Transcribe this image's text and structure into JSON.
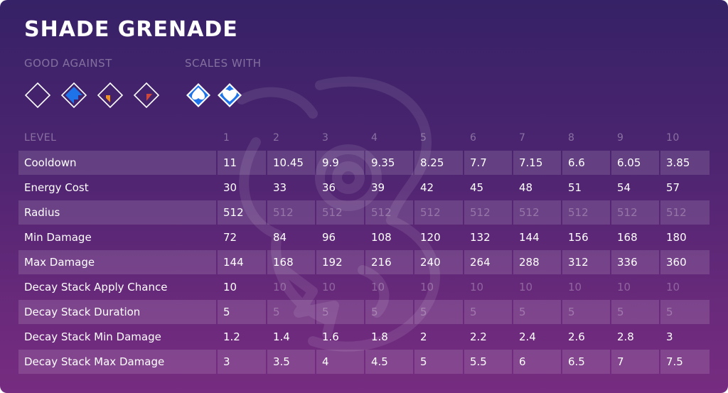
{
  "title": "SHADE GRENADE",
  "good_against": {
    "label": "GOOD AGAINST",
    "icons": [
      "diamond-outline-icon",
      "diamond-blue-corner-icon",
      "diamond-orange-corner-icon",
      "diamond-red-corner-icon"
    ]
  },
  "scales_with": {
    "label": "SCALES WITH",
    "icons": [
      "diamond-blue-spade-icon",
      "diamond-blue-heart-icon"
    ]
  },
  "colors": {
    "bg_top": "#362266",
    "bg_bottom": "#762c80",
    "accent_blue": "#1e73e8",
    "accent_orange": "#f0921e",
    "accent_red": "#d0483a"
  },
  "table": {
    "header": [
      "LEVEL",
      "1",
      "2",
      "3",
      "4",
      "5",
      "6",
      "7",
      "8",
      "9",
      "10"
    ],
    "rows": [
      {
        "label": "Cooldown",
        "values": [
          "11",
          "10.45",
          "9.9",
          "9.35",
          "8.25",
          "7.7",
          "7.15",
          "6.6",
          "6.05",
          "3.85"
        ],
        "dim": [
          false,
          false,
          false,
          false,
          false,
          false,
          false,
          false,
          false,
          false
        ]
      },
      {
        "label": "Energy Cost",
        "values": [
          "30",
          "33",
          "36",
          "39",
          "42",
          "45",
          "48",
          "51",
          "54",
          "57"
        ],
        "dim": [
          false,
          false,
          false,
          false,
          false,
          false,
          false,
          false,
          false,
          false
        ]
      },
      {
        "label": "Radius",
        "values": [
          "512",
          "512",
          "512",
          "512",
          "512",
          "512",
          "512",
          "512",
          "512",
          "512"
        ],
        "dim": [
          false,
          true,
          true,
          true,
          true,
          true,
          true,
          true,
          true,
          true
        ]
      },
      {
        "label": "Min Damage",
        "values": [
          "72",
          "84",
          "96",
          "108",
          "120",
          "132",
          "144",
          "156",
          "168",
          "180"
        ],
        "dim": [
          false,
          false,
          false,
          false,
          false,
          false,
          false,
          false,
          false,
          false
        ]
      },
      {
        "label": "Max Damage",
        "values": [
          "144",
          "168",
          "192",
          "216",
          "240",
          "264",
          "288",
          "312",
          "336",
          "360"
        ],
        "dim": [
          false,
          false,
          false,
          false,
          false,
          false,
          false,
          false,
          false,
          false
        ]
      },
      {
        "label": "Decay Stack Apply Chance",
        "values": [
          "10",
          "10",
          "10",
          "10",
          "10",
          "10",
          "10",
          "10",
          "10",
          "10"
        ],
        "dim": [
          false,
          true,
          true,
          true,
          true,
          true,
          true,
          true,
          true,
          true
        ]
      },
      {
        "label": "Decay Stack Duration",
        "values": [
          "5",
          "5",
          "5",
          "5",
          "5",
          "5",
          "5",
          "5",
          "5",
          "5"
        ],
        "dim": [
          false,
          true,
          true,
          true,
          true,
          true,
          true,
          true,
          true,
          true
        ]
      },
      {
        "label": "Decay Stack Min Damage",
        "values": [
          "1.2",
          "1.4",
          "1.6",
          "1.8",
          "2",
          "2.2",
          "2.4",
          "2.6",
          "2.8",
          "3"
        ],
        "dim": [
          false,
          false,
          false,
          false,
          false,
          false,
          false,
          false,
          false,
          false
        ]
      },
      {
        "label": "Decay Stack Max Damage",
        "values": [
          "3",
          "3.5",
          "4",
          "4.5",
          "5",
          "5.5",
          "6",
          "6.5",
          "7",
          "7.5"
        ],
        "dim": [
          false,
          false,
          false,
          false,
          false,
          false,
          false,
          false,
          false,
          false
        ]
      }
    ]
  }
}
